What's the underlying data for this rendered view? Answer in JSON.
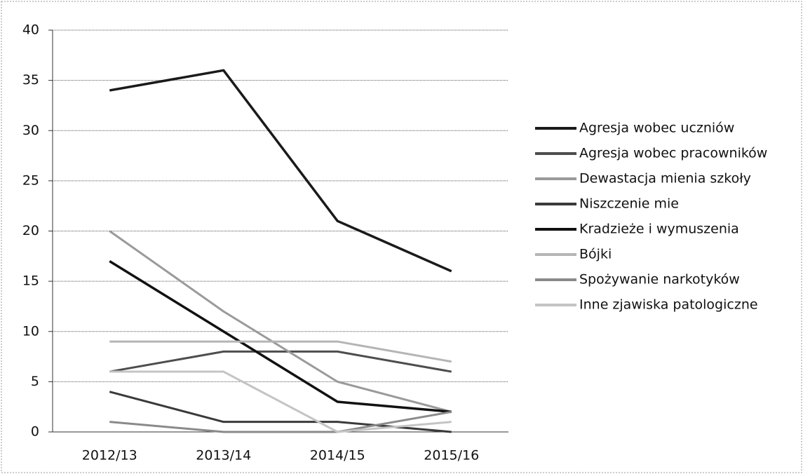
{
  "chart_data": {
    "type": "line",
    "categories": [
      "2012/13",
      "2013/14",
      "2014/15",
      "2015/16"
    ],
    "series": [
      {
        "name": "Agresja wobec uczniów",
        "color": "#1a1a1a",
        "values": [
          34,
          36,
          21,
          16
        ]
      },
      {
        "name": "Agresja wobec pracowników",
        "color": "#4d4d4d",
        "values": [
          6,
          8,
          8,
          6
        ]
      },
      {
        "name": "Dewastacja mienia szkoły",
        "color": "#9a9a9a",
        "values": [
          20,
          12,
          5,
          2
        ]
      },
      {
        "name": "Niszczenie mie",
        "color": "#3a3a3a",
        "values": [
          4,
          1,
          1,
          0
        ]
      },
      {
        "name": "Kradzieże i wymuszenia",
        "color": "#111111",
        "values": [
          17,
          10,
          3,
          2
        ]
      },
      {
        "name": "Bójki",
        "color": "#b5b5b5",
        "values": [
          9,
          9,
          9,
          7
        ]
      },
      {
        "name": "Spożywanie narkotyków",
        "color": "#8a8a8a",
        "values": [
          1,
          0,
          0,
          2
        ]
      },
      {
        "name": "Inne zjawiska patologiczne",
        "color": "#c4c4c4",
        "values": [
          6,
          6,
          0,
          1
        ]
      }
    ],
    "ylim": [
      0,
      40
    ],
    "yticks": [
      0,
      5,
      10,
      15,
      20,
      25,
      30,
      35,
      40
    ],
    "grid": true,
    "legend": "right"
  }
}
